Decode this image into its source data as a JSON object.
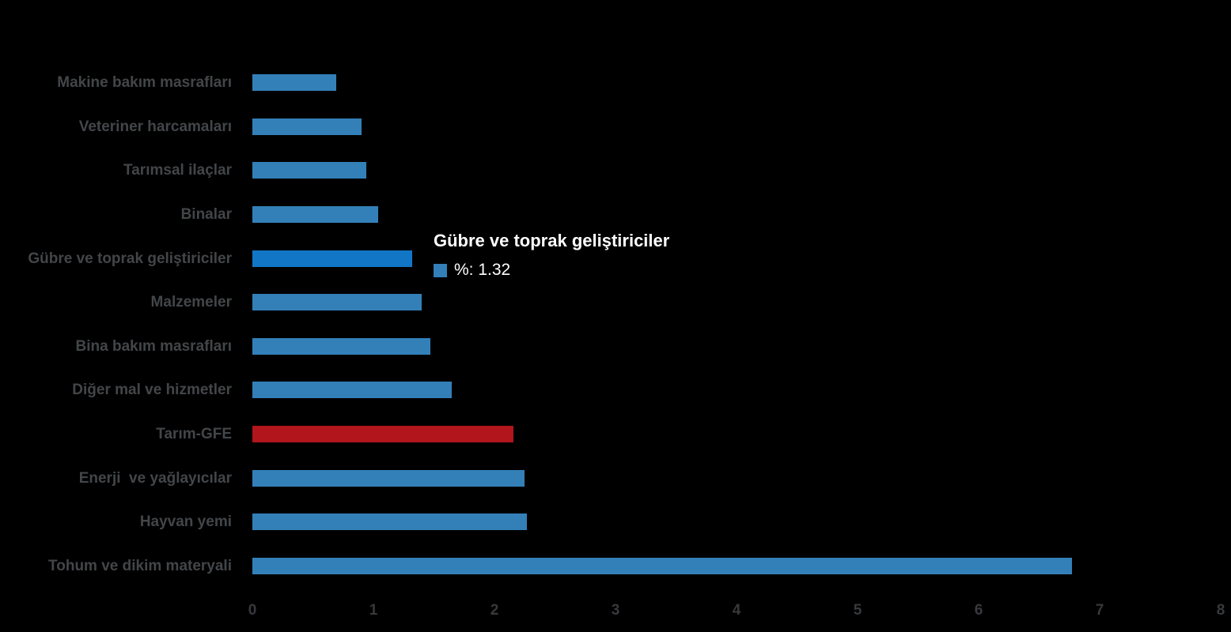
{
  "colors": {
    "background": "#000000",
    "bar_default": "#3380b8",
    "bar_highlight": "#1276c6",
    "bar_emphasis_red": "#b2151b",
    "label_text": "#434649",
    "axis_text": "#37393c",
    "tooltip_text": "#ffffff"
  },
  "chart_data": {
    "type": "bar",
    "orientation": "horizontal",
    "title": "",
    "xlabel": "",
    "ylabel": "",
    "xlim": [
      0,
      8
    ],
    "grid": false,
    "legend": false,
    "x_ticks": [
      "0",
      "1",
      "2",
      "3",
      "4",
      "5",
      "6",
      "7",
      "8"
    ],
    "series_name": "%",
    "categories": [
      "Makine bakım masrafları",
      "Veteriner harcamaları",
      "Tarımsal ilaçlar",
      "Binalar",
      "Gübre ve toprak geliştiriciler",
      "Malzemeler",
      "Bina bakım masrafları",
      "Diğer mal ve hizmetler",
      "Tarım-GFE",
      "Enerji  ve yağlayıcılar",
      "Hayvan yemi",
      "Tohum ve dikim materyali"
    ],
    "values": [
      0.69,
      0.9,
      0.94,
      1.04,
      1.32,
      1.4,
      1.47,
      1.65,
      2.16,
      2.25,
      2.27,
      6.77
    ],
    "bars": [
      {
        "label": "Makine bakım masrafları",
        "value": 0.69,
        "color_role": "default"
      },
      {
        "label": "Veteriner harcamaları",
        "value": 0.9,
        "color_role": "default"
      },
      {
        "label": "Tarımsal ilaçlar",
        "value": 0.94,
        "color_role": "default"
      },
      {
        "label": "Binalar",
        "value": 1.04,
        "color_role": "default"
      },
      {
        "label": "Gübre ve toprak geliştiriciler",
        "value": 1.32,
        "color_role": "highlight"
      },
      {
        "label": "Malzemeler",
        "value": 1.4,
        "color_role": "default"
      },
      {
        "label": "Bina bakım masrafları",
        "value": 1.47,
        "color_role": "default"
      },
      {
        "label": "Diğer mal ve hizmetler",
        "value": 1.65,
        "color_role": "default"
      },
      {
        "label": "Tarım-GFE",
        "value": 2.16,
        "color_role": "red"
      },
      {
        "label": "Enerji  ve yağlayıcılar",
        "value": 2.25,
        "color_role": "default"
      },
      {
        "label": "Hayvan yemi",
        "value": 2.27,
        "color_role": "default"
      },
      {
        "label": "Tohum ve dikim materyali",
        "value": 6.77,
        "color_role": "default"
      }
    ]
  },
  "tooltip": {
    "title": "Gübre ve toprak geliştiriciler",
    "series_label": "%",
    "value": "1.32",
    "value_text": "%: 1.32",
    "swatch_color": "#3380b8"
  }
}
